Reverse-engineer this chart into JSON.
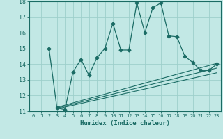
{
  "title": "",
  "xlabel": "Humidex (Indice chaleur)",
  "bg_color": "#c2e8e5",
  "grid_color": "#9ecfcb",
  "line_color": "#1a6b64",
  "xlim": [
    -0.5,
    23.5
  ],
  "ylim": [
    11,
    18
  ],
  "yticks": [
    11,
    12,
    13,
    14,
    15,
    16,
    17,
    18
  ],
  "xticks": [
    0,
    1,
    2,
    3,
    4,
    5,
    6,
    7,
    8,
    9,
    10,
    11,
    12,
    13,
    14,
    15,
    16,
    17,
    18,
    19,
    20,
    21,
    22,
    23
  ],
  "main_x": [
    2,
    3,
    4,
    5,
    6,
    7,
    8,
    9,
    10,
    11,
    12,
    13,
    14,
    15,
    16,
    17,
    18,
    19,
    20,
    21,
    22,
    23
  ],
  "main_y": [
    15.0,
    11.2,
    11.1,
    13.5,
    14.3,
    13.3,
    14.4,
    15.0,
    16.6,
    14.9,
    14.9,
    17.9,
    16.0,
    17.6,
    17.9,
    15.8,
    15.75,
    14.5,
    14.1,
    13.6,
    13.6,
    14.0
  ],
  "line1_x": [
    3,
    23
  ],
  "line1_y": [
    11.25,
    14.05
  ],
  "line2_x": [
    3,
    23
  ],
  "line2_y": [
    11.15,
    13.45
  ],
  "line3_x": [
    3,
    23
  ],
  "line3_y": [
    11.2,
    13.75
  ]
}
